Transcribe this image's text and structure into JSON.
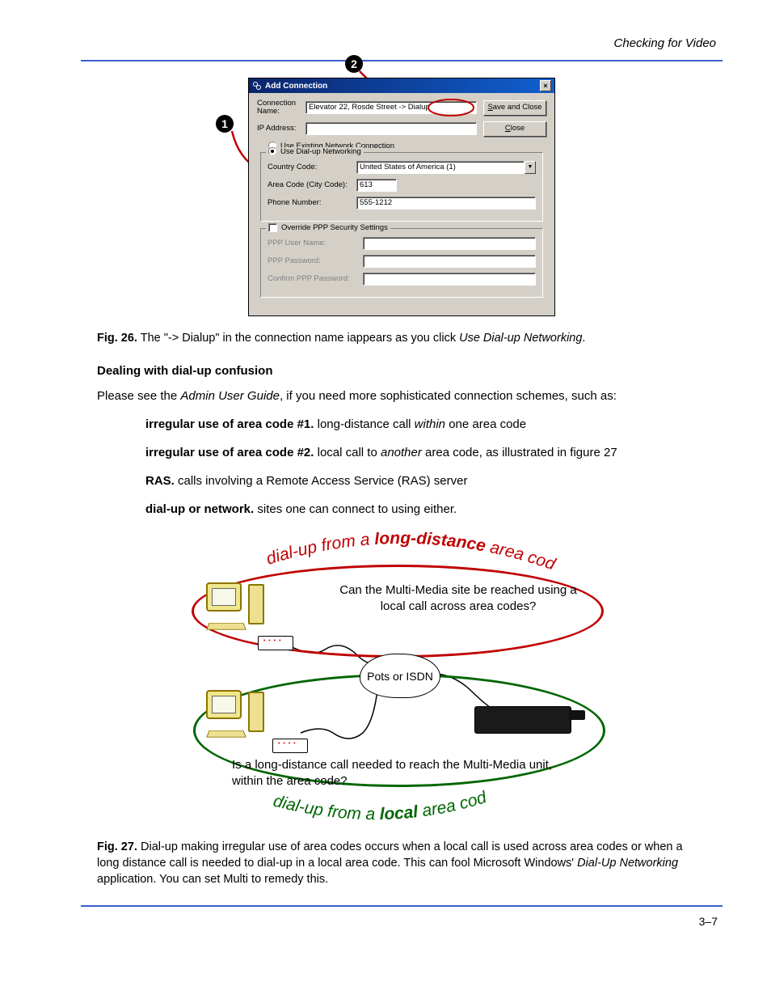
{
  "headerText": "Checking for Video",
  "colors": {
    "rule": "#3a5fcd",
    "titlebarGradStart": "#0a246a",
    "titlebarGradEnd": "#1060d0",
    "dialogBg": "#d4d0c8",
    "redEllipse": "#c00000",
    "greenEllipse": "#006600",
    "curveRed": "#c00000",
    "curveGreen": "#006600"
  },
  "dialog": {
    "title": "Add Connection",
    "closeX": "×",
    "connNameLabel": "Connection Name:",
    "connNameValue": "Elevator 22, Rosde Street -> Dialup",
    "ipLabel": "IP Address:",
    "ipValue": "",
    "saveBtn": "Save and Close",
    "closeBtn": "Close",
    "radio1": "Use Existing Network Connection",
    "radio2": "Use Dial-up Networking",
    "countryLabel": "Country Code:",
    "countryValue": "United States of America (1)",
    "areaLabel": "Area Code (City Code):",
    "areaValue": "613",
    "phoneLabel": "Phone Number:",
    "phoneValue": "555-1212",
    "overrideLabel": "Override PPP Security Settings",
    "pppUserLabel": "PPP User Name:",
    "pppPassLabel": "PPP Password:",
    "pppConfirmLabel": "Confirm PPP Password:"
  },
  "fig26": {
    "label": "Fig. 26.",
    "textA": "The \"-> Dialup\" in the connection name iappears as you click ",
    "textB": "Use Dial-up Networking",
    "textC": "."
  },
  "sectionHeading": "Dealing with dial-up confusion",
  "paraA": "Please see the ",
  "paraB": "Admin User Guide",
  "paraC": ", if you need more sophisticated connection schemes, such as:",
  "defs": [
    {
      "term": "irregular use of area code #1.",
      "rest": " long-distance call ",
      "ital": "within",
      "rest2": " one area code"
    },
    {
      "term": "irregular use of area code #2.",
      "rest": " local call to ",
      "ital": "another",
      "rest2": " area code, as illustrated in figure 27"
    },
    {
      "term": "RAS.",
      "rest": " calls involving a Remote Access Service (RAS) server",
      "ital": "",
      "rest2": ""
    },
    {
      "term": "dial-up or network.",
      "rest": " sites one can connect to using either.",
      "ital": "",
      "rest2": ""
    }
  ],
  "fig27diagram": {
    "topCurveA": "dial-up from a ",
    "topCurveB": "long-distance",
    "topCurveC": " area code",
    "botCurveA": "dial-up from a ",
    "botCurveB": "local",
    "botCurveC": " area code",
    "cloud": "Pots or ISDN",
    "q1": "Can the Multi-Media site be reached using a local call across area codes?",
    "q2": "Is a long-distance call needed to reach the Multi-Media unit, within the area code?"
  },
  "fig27": {
    "label": "Fig. 27.",
    "text": "Dial-up making irregular use of area codes occurs when a local call is used across area codes or when a long distance call is needed to dial-up in a local area code. This can fool Microsoft Windows' ",
    "ital": "Dial-Up Networking",
    "text2": " application. You can set Multi to remedy this."
  },
  "footer": "3–7"
}
